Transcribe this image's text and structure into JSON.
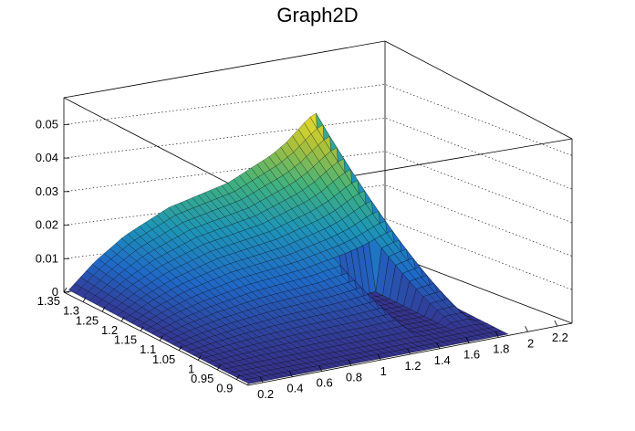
{
  "chart_data": {
    "type": "surface",
    "title": "Graph2D",
    "xlabel": "",
    "ylabel": "",
    "zlabel": "",
    "xlim": [
      0.1,
      2.3
    ],
    "ylim": [
      0.87,
      1.35
    ],
    "zlim": [
      0,
      0.058
    ],
    "x_ticks": [
      "0.2",
      "0.4",
      "0.6",
      "0.8",
      "1",
      "1.2",
      "1.4",
      "1.6",
      "1.8",
      "2",
      "2.2"
    ],
    "y_ticks": [
      "0.9",
      "0.95",
      "1",
      "1.05",
      "1.1",
      "1.15",
      "1.2",
      "1.25",
      "1.3",
      "1.35"
    ],
    "z_ticks": [
      "0",
      "0.01",
      "0.02",
      "0.03",
      "0.04",
      "0.05"
    ],
    "grid": true,
    "colormap": "viridis-like (blue to yellow)",
    "colors": [
      "#35348f",
      "#1f69c8",
      "#1e95b7",
      "#41b27d",
      "#a9c03c",
      "#f6e226"
    ],
    "surface_profile": {
      "x": [
        0.1,
        0.2,
        0.3,
        0.4,
        0.5,
        0.6,
        0.7,
        0.8,
        0.9,
        1.0,
        1.1,
        1.2,
        1.3,
        1.4,
        1.5,
        1.6,
        1.7,
        1.75,
        1.8,
        1.85
      ],
      "peak_z": [
        0.0,
        0.004,
        0.008,
        0.011,
        0.014,
        0.016,
        0.018,
        0.02,
        0.021,
        0.022,
        0.023,
        0.024,
        0.026,
        0.028,
        0.03,
        0.033,
        0.037,
        0.039,
        0.04,
        0.0
      ]
    },
    "gap_region": {
      "x_from": 1.42,
      "x_to": 1.65
    }
  }
}
